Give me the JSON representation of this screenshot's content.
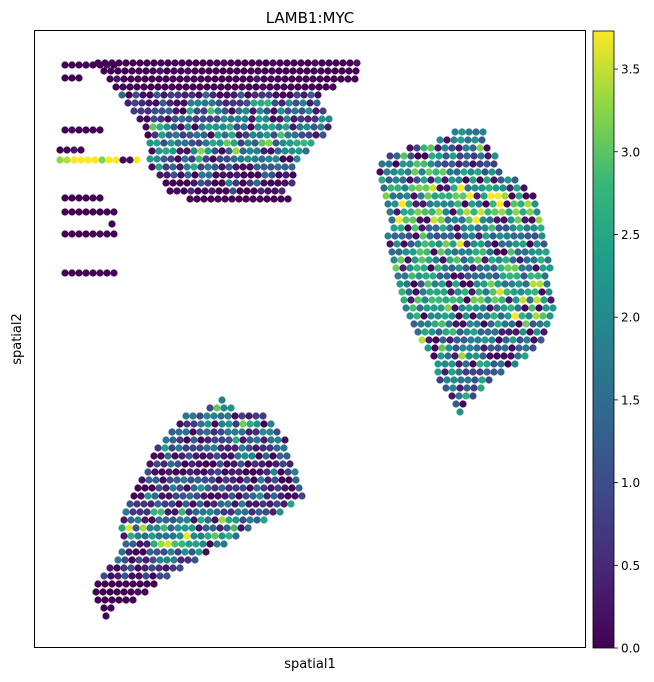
{
  "chart_data": {
    "type": "scatter",
    "title": "LAMB1:MYC",
    "xlabel": "spatial1",
    "ylabel": "spatial2",
    "x_ticks": [],
    "y_ticks": [],
    "grid": false,
    "legend": "none",
    "colorbar": {
      "cmap": "viridis",
      "range": [
        0.0,
        3.73
      ],
      "ticks": [
        0.0,
        0.5,
        1.0,
        1.5,
        2.0,
        2.5,
        3.0,
        3.5
      ],
      "tick_labels": [
        "0.0",
        "0.5",
        "1.0",
        "1.5",
        "2.0",
        "2.5",
        "3.0",
        "3.5"
      ],
      "position": "right"
    },
    "regions": [
      {
        "region": "top-left strip",
        "value_level": 0.0,
        "rows": [
          [
            65,
            8,
            65,
            0
          ],
          [
            78,
            3,
            65,
            0
          ],
          [
            130,
            6,
            65,
            0
          ],
          [
            150,
            4,
            60,
            0
          ],
          [
            160,
            12,
            60,
            4
          ],
          [
            198,
            6,
            65,
            0
          ],
          [
            212,
            8,
            65,
            0
          ],
          [
            234,
            8,
            65,
            0
          ],
          [
            273,
            8,
            65,
            0
          ]
        ]
      },
      {
        "region": "top-left dot",
        "value_level": 0.0,
        "rows": [
          [
            224,
            1,
            112,
            0
          ]
        ]
      },
      {
        "region": "top-center cluster",
        "value_level": 0.9,
        "rows": [
          [
            63,
            38,
            98,
            0
          ],
          [
            71,
            37,
            104,
            0
          ],
          [
            79,
            36,
            110,
            0
          ],
          [
            87,
            32,
            116,
            0
          ],
          [
            95,
            29,
            122,
            0.6
          ],
          [
            103,
            28,
            128,
            1.2
          ],
          [
            111,
            28,
            134,
            1.5
          ],
          [
            119,
            28,
            140,
            1.4
          ],
          [
            127,
            27,
            146,
            1.8
          ],
          [
            135,
            26,
            148,
            1.6
          ],
          [
            143,
            24,
            150,
            1.7
          ],
          [
            151,
            23,
            152,
            1.8
          ],
          [
            159,
            22,
            150,
            1.5
          ],
          [
            167,
            21,
            152,
            1.0
          ],
          [
            175,
            20,
            160,
            0.6
          ],
          [
            183,
            19,
            166,
            0.3
          ],
          [
            191,
            17,
            170,
            0.1
          ],
          [
            199,
            15,
            190,
            0
          ]
        ]
      },
      {
        "region": "right cluster",
        "value_level": 2.0,
        "rows": [
          [
            132,
            5,
            455,
            2.2
          ],
          [
            140,
            7,
            440,
            2.0
          ],
          [
            148,
            12,
            410,
            1.6
          ],
          [
            156,
            16,
            390,
            1.5
          ],
          [
            164,
            17,
            382,
            1.6
          ],
          [
            172,
            18,
            380,
            1.8
          ],
          [
            180,
            20,
            382,
            2.0
          ],
          [
            188,
            21,
            384,
            2.3
          ],
          [
            196,
            22,
            386,
            2.5
          ],
          [
            204,
            22,
            388,
            2.6
          ],
          [
            212,
            22,
            390,
            2.7
          ],
          [
            220,
            22,
            392,
            2.4
          ],
          [
            228,
            22,
            394,
            2.0
          ],
          [
            236,
            23,
            388,
            1.8
          ],
          [
            244,
            23,
            390,
            2.0
          ],
          [
            252,
            23,
            392,
            2.2
          ],
          [
            260,
            23,
            394,
            2.3
          ],
          [
            268,
            23,
            396,
            2.2
          ],
          [
            276,
            22,
            398,
            2.1
          ],
          [
            284,
            22,
            400,
            2.0
          ],
          [
            292,
            22,
            402,
            2.1
          ],
          [
            300,
            22,
            404,
            2.2
          ],
          [
            308,
            22,
            406,
            2.3
          ],
          [
            316,
            21,
            410,
            2.2
          ],
          [
            324,
            20,
            414,
            2.0
          ],
          [
            332,
            19,
            418,
            1.9
          ],
          [
            340,
            18,
            422,
            1.8
          ],
          [
            348,
            16,
            428,
            1.8
          ],
          [
            356,
            14,
            434,
            1.8
          ],
          [
            364,
            12,
            438,
            1.7
          ],
          [
            372,
            10,
            438,
            1.6
          ],
          [
            380,
            8,
            440,
            1.6
          ],
          [
            388,
            6,
            446,
            1.7
          ],
          [
            396,
            4,
            452,
            1.8
          ],
          [
            404,
            2,
            456,
            1.9
          ],
          [
            412,
            1,
            460,
            2.0
          ]
        ]
      },
      {
        "region": "bottom-left cluster",
        "value_level": 1.0,
        "rows": [
          [
            400,
            1,
            222,
            1.2
          ],
          [
            408,
            4,
            210,
            1.5
          ],
          [
            416,
            12,
            186,
            1.4
          ],
          [
            424,
            14,
            180,
            1.5
          ],
          [
            432,
            16,
            172,
            1.3
          ],
          [
            440,
            18,
            166,
            1.1
          ],
          [
            448,
            19,
            158,
            0.9
          ],
          [
            456,
            20,
            154,
            0.7
          ],
          [
            464,
            21,
            150,
            0.6
          ],
          [
            472,
            22,
            148,
            0.4
          ],
          [
            480,
            23,
            142,
            0.5
          ],
          [
            488,
            24,
            138,
            0.6
          ],
          [
            496,
            25,
            134,
            0.7
          ],
          [
            504,
            24,
            130,
            0.9
          ],
          [
            512,
            23,
            126,
            1.3
          ],
          [
            520,
            21,
            124,
            1.8
          ],
          [
            528,
            19,
            122,
            2.0
          ],
          [
            536,
            17,
            124,
            2.1
          ],
          [
            544,
            15,
            126,
            2.0
          ],
          [
            552,
            13,
            122,
            1.6
          ],
          [
            560,
            12,
            118,
            1.1
          ],
          [
            568,
            11,
            110,
            0.5
          ],
          [
            576,
            10,
            104,
            0.2
          ],
          [
            584,
            9,
            98,
            0
          ],
          [
            592,
            8,
            96,
            0
          ],
          [
            600,
            6,
            98,
            0
          ],
          [
            608,
            2,
            104,
            0
          ],
          [
            616,
            1,
            106,
            0
          ]
        ]
      }
    ]
  }
}
